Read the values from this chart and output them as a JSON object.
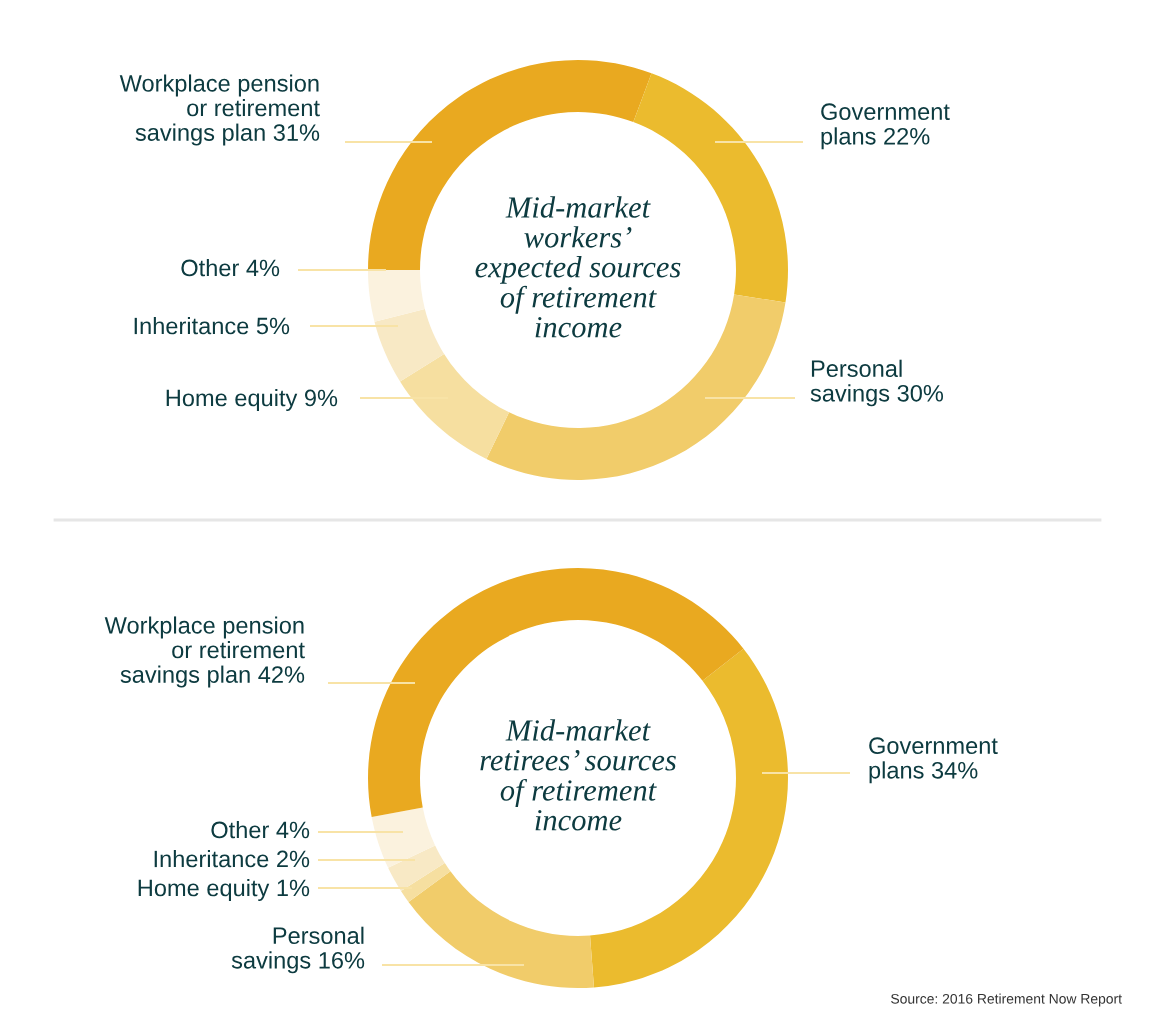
{
  "chart_data": [
    {
      "type": "donut",
      "title": "Mid-market\nworkers’\nexpected sources\nof retirement\nincome",
      "categories": [
        "Workplace pension\nor retirement\nsavings plan",
        "Government\nplans",
        "Personal\nsavings",
        "Home equity",
        "Inheritance",
        "Other"
      ],
      "values": [
        31,
        22,
        30,
        9,
        5,
        4
      ],
      "value_labels": [
        "31%",
        "22%",
        "30%",
        "9%",
        "5%",
        "4%"
      ],
      "colors": [
        "#e9a920",
        "#ebbb2e",
        "#f1cc6a",
        "#f6dfa0",
        "#f8e9c5",
        "#fbf2de"
      ]
    },
    {
      "type": "donut",
      "title": "Mid-market\nretirees’ sources\nof retirement\nincome",
      "categories": [
        "Government\nplans",
        "Personal\nsavings",
        "Home equity",
        "Inheritance",
        "Other",
        "Workplace pension\nor retirement\nsavings plan"
      ],
      "values": [
        34,
        16,
        1,
        2,
        4,
        42
      ],
      "value_labels": [
        "34%",
        "16%",
        "1%",
        "2%",
        "4%",
        "42%"
      ],
      "colors": [
        "#ebbb2e",
        "#f1cc6a",
        "#f6dfa0",
        "#f8e9c5",
        "#fbf2de",
        "#e9a920"
      ],
      "annotations": [
        "Source: 2016 Retirement Now Report"
      ]
    }
  ]
}
